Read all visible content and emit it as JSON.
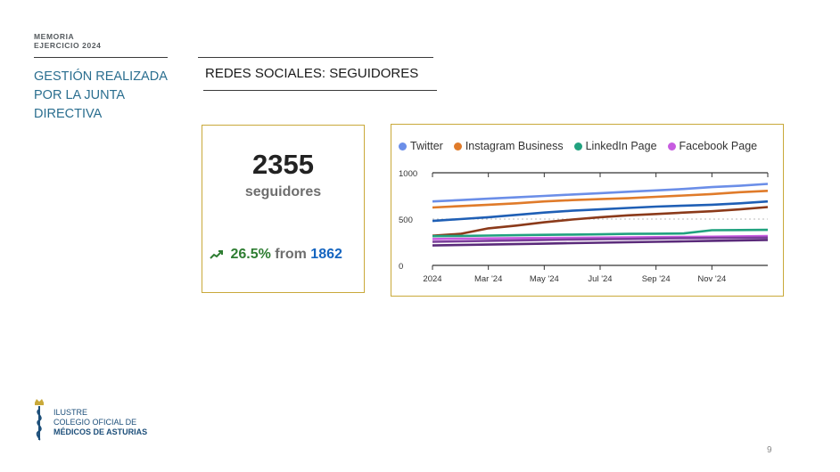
{
  "header": {
    "line1": "MEMORIA",
    "line2": "EJERCICIO 2024"
  },
  "section_title": "GESTIÓN REALIZADA POR LA JUNTA DIRECTIVA",
  "slide_title": "REDES SOCIALES: SEGUIDORES",
  "stat_card": {
    "count": "2355",
    "label": "seguidores",
    "change_pct": "26.5%",
    "from_word": "from",
    "previous": "1862",
    "icon": "trending-up-icon"
  },
  "chart_data": {
    "type": "line",
    "legend": [
      "Twitter",
      "Instagram Business",
      "LinkedIn Page",
      "Facebook Page"
    ],
    "legend_colors": [
      "#6b8ee8",
      "#e07b2a",
      "#21a27f",
      "#c75ce0"
    ],
    "x_ticks": [
      "2024",
      "Mar '24",
      "May '24",
      "Jul '24",
      "Sep '24",
      "Nov '24"
    ],
    "y_ticks": [
      "1000",
      "500",
      "0"
    ],
    "ylim": [
      0,
      1000
    ],
    "x": [
      0,
      1,
      2,
      3,
      4,
      5,
      6,
      7,
      8,
      9,
      10,
      11,
      12
    ],
    "series": [
      {
        "color": "#6b8ee8",
        "values": [
          690,
          705,
          720,
          735,
          750,
          765,
          780,
          795,
          810,
          825,
          845,
          860,
          880
        ]
      },
      {
        "color": "#e07b2a",
        "values": [
          625,
          640,
          655,
          670,
          690,
          705,
          715,
          725,
          740,
          755,
          770,
          790,
          805
        ]
      },
      {
        "color": "#1f5fb5",
        "values": [
          480,
          500,
          520,
          545,
          570,
          590,
          605,
          620,
          635,
          645,
          655,
          670,
          690
        ]
      },
      {
        "color": "#8b3a1a",
        "values": [
          320,
          340,
          400,
          430,
          465,
          495,
          520,
          540,
          555,
          570,
          585,
          605,
          630
        ]
      },
      {
        "color": "#21a27f",
        "values": [
          315,
          318,
          322,
          326,
          330,
          333,
          336,
          340,
          342,
          345,
          380,
          382,
          384
        ]
      },
      {
        "color": "#c75ce0",
        "values": [
          285,
          288,
          291,
          294,
          296,
          298,
          300,
          302,
          305,
          308,
          310,
          313,
          316
        ]
      },
      {
        "color": "#7a3d9a",
        "values": [
          255,
          260,
          265,
          270,
          275,
          280,
          283,
          286,
          290,
          294,
          296,
          298,
          300
        ]
      },
      {
        "color": "#5a2a7a",
        "values": [
          215,
          220,
          225,
          230,
          235,
          240,
          245,
          250,
          255,
          260,
          265,
          270,
          275
        ]
      }
    ]
  },
  "logo": {
    "line1": "ILUSTRE",
    "line2": "COLEGIO OFICIAL DE",
    "line3": "MÉDICOS DE ASTURIAS"
  },
  "page_number": "9"
}
